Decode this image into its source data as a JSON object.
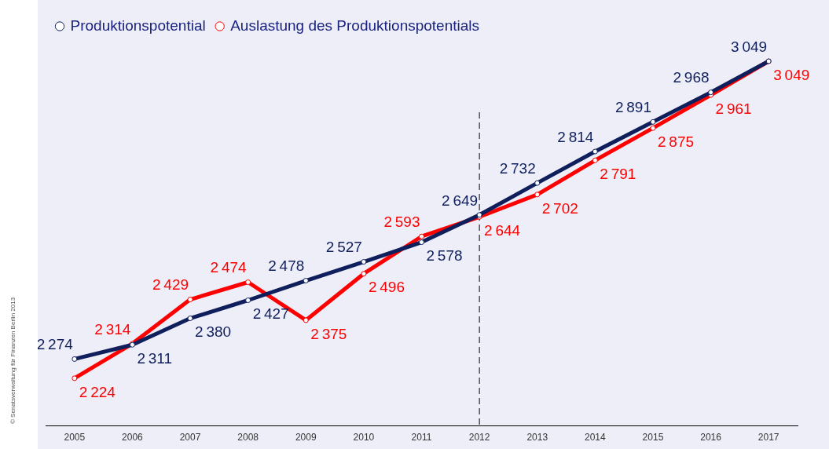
{
  "chart_data": {
    "type": "line",
    "categories": [
      "2005",
      "2006",
      "2007",
      "2008",
      "2009",
      "2010",
      "2011",
      "2012",
      "2013",
      "2014",
      "2015",
      "2016",
      "2017"
    ],
    "series": [
      {
        "name": "Produktionspotential",
        "color": "#0f1f5c",
        "values": [
          2274,
          2311,
          2380,
          2427,
          2478,
          2527,
          2578,
          2649,
          2732,
          2814,
          2891,
          2968,
          3049
        ]
      },
      {
        "name": "Auslastung des Produktionspotentials",
        "color": "#ff0000",
        "values": [
          2224,
          2314,
          2429,
          2474,
          2375,
          2496,
          2593,
          2644,
          2702,
          2791,
          2875,
          2961,
          3049
        ]
      }
    ],
    "tick_labels": "x",
    "grid": false,
    "legend": "top left",
    "marker": "circle",
    "line_style": "solid",
    "data_labels": true,
    "ref_lines": [
      {
        "axis": "x",
        "value": "2012",
        "color": "#000000",
        "line_style": "dashed"
      }
    ],
    "annotations": [
      "© Senatsverwaltung für Finanzen Berlin 2013"
    ]
  }
}
